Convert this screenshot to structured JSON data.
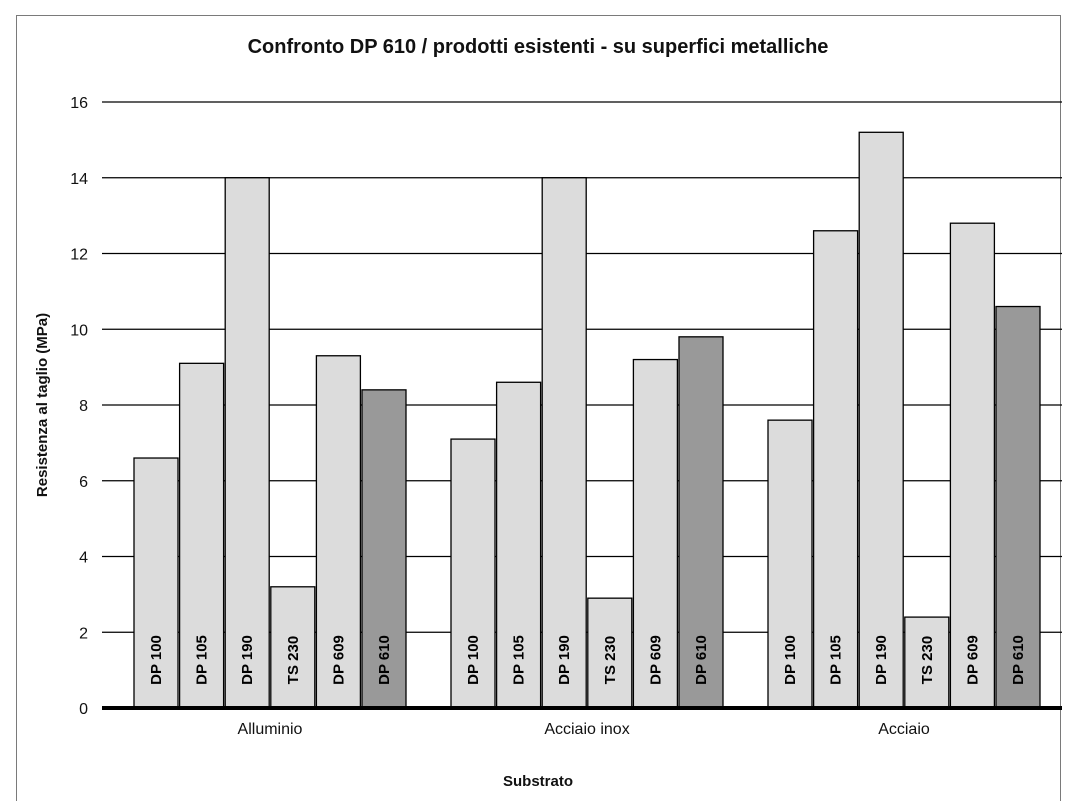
{
  "chart_data": {
    "type": "bar",
    "title": "Confronto DP 610 / prodotti esistenti - su superfici metalliche",
    "xlabel": "Substrato",
    "ylabel": "Resistenza al taglio (MPa)",
    "ylim": [
      0,
      16
    ],
    "yticks": [
      "0",
      "2",
      "4",
      "6",
      "8",
      "10",
      "12",
      "14",
      "16"
    ],
    "grid": true,
    "categories": [
      "Alluminio",
      "Acciaio inox",
      "Acciaio"
    ],
    "series": [
      {
        "name": "DP 100",
        "color": "#dcdcdc",
        "values": [
          6.6,
          7.1,
          7.6
        ]
      },
      {
        "name": "DP 105",
        "color": "#dcdcdc",
        "values": [
          9.1,
          8.6,
          12.6
        ]
      },
      {
        "name": "DP 190",
        "color": "#dcdcdc",
        "values": [
          14.0,
          14.0,
          15.2
        ]
      },
      {
        "name": "TS 230",
        "color": "#dcdcdc",
        "values": [
          3.2,
          2.9,
          2.4
        ]
      },
      {
        "name": "DP 609",
        "color": "#dcdcdc",
        "values": [
          9.3,
          9.2,
          12.8
        ]
      },
      {
        "name": "DP 610",
        "color": "#999999",
        "values": [
          8.4,
          9.8,
          10.6
        ]
      }
    ]
  }
}
